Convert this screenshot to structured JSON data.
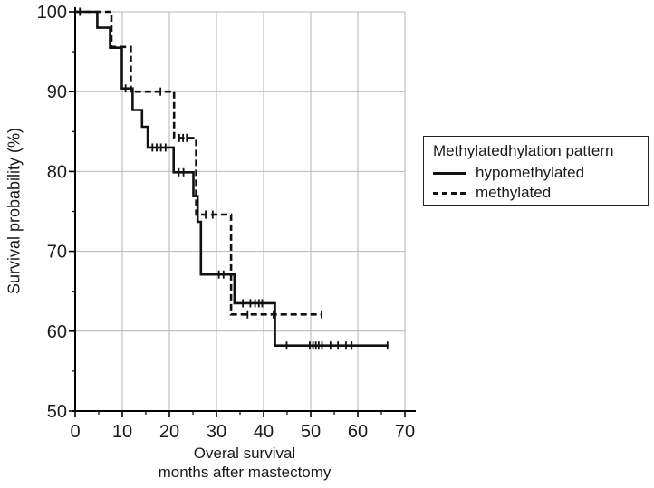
{
  "figure": {
    "background": "#ffffff",
    "line_color": "#111111",
    "grid_color": "#b4b4b4",
    "axis_color": "#000000"
  },
  "axes": {
    "x": {
      "title_line1": "Overal survival",
      "title_line2": "months after mastectomy",
      "min": 0,
      "max": 70,
      "major_tick_labels": [
        "0",
        "10",
        "20",
        "30",
        "40",
        "50",
        "60",
        "70"
      ],
      "major_ticks": [
        0,
        10,
        20,
        30,
        40,
        50,
        60,
        70
      ],
      "minor_ticks": [
        5,
        15,
        25,
        35,
        45,
        55,
        65
      ]
    },
    "y": {
      "title": "Survival probability (%)",
      "min": 50,
      "max": 100,
      "major_tick_labels": [
        "50",
        "60",
        "70",
        "80",
        "90",
        "100"
      ],
      "major_ticks": [
        50,
        60,
        70,
        80,
        90,
        100
      ],
      "minor_ticks": [
        55,
        65,
        75,
        85,
        95
      ]
    }
  },
  "legend": {
    "title": "Methylatedhylation pattern",
    "items": [
      {
        "label": "hypomethylated",
        "style": "solid"
      },
      {
        "label": "methylated",
        "style": "dashed"
      }
    ]
  },
  "chart_data": {
    "type": "line",
    "subtype": "kaplan-meier-step",
    "title": "",
    "xlabel": "Overal survival months after mastectomy",
    "ylabel": "Survival probability (%)",
    "xlim": [
      0,
      70
    ],
    "ylim": [
      50,
      100
    ],
    "grid": true,
    "legend_position": "right",
    "series": [
      {
        "name": "hypomethylated",
        "line": "solid",
        "color": "#111111",
        "segments": [
          [
            0,
            4.7,
            100
          ],
          [
            4.7,
            7.4,
            98.0
          ],
          [
            7.4,
            9.9,
            95.5
          ],
          [
            9.9,
            12.2,
            90.4
          ],
          [
            12.2,
            14.2,
            87.7
          ],
          [
            14.2,
            15.4,
            85.6
          ],
          [
            15.4,
            20.9,
            83.0
          ],
          [
            20.9,
            25.1,
            79.9
          ],
          [
            25.1,
            26.0,
            76.9
          ],
          [
            26.0,
            26.7,
            73.7
          ],
          [
            26.7,
            33.8,
            67.1
          ],
          [
            33.8,
            42.4,
            63.5
          ],
          [
            42.4,
            66.5,
            58.2
          ]
        ],
        "censored": [
          [
            1.0,
            100
          ],
          [
            10.7,
            90.4
          ],
          [
            16.4,
            83.0
          ],
          [
            17.3,
            83.0
          ],
          [
            18.2,
            83.0
          ],
          [
            19.2,
            83.0
          ],
          [
            22.0,
            79.9
          ],
          [
            23.0,
            79.9
          ],
          [
            30.5,
            67.1
          ],
          [
            31.5,
            67.1
          ],
          [
            35.6,
            63.5
          ],
          [
            37.2,
            63.5
          ],
          [
            38.2,
            63.5
          ],
          [
            39.0,
            63.5
          ],
          [
            39.7,
            63.5
          ],
          [
            44.9,
            58.2
          ],
          [
            49.8,
            58.2
          ],
          [
            50.5,
            58.2
          ],
          [
            51.1,
            58.2
          ],
          [
            51.7,
            58.2
          ],
          [
            52.4,
            58.2
          ],
          [
            54.2,
            58.2
          ],
          [
            55.8,
            58.2
          ],
          [
            57.5,
            58.2
          ],
          [
            58.7,
            58.2
          ],
          [
            66.3,
            58.2
          ]
        ]
      },
      {
        "name": "methylated",
        "line": "dashed",
        "color": "#111111",
        "segments": [
          [
            0,
            7.7,
            100
          ],
          [
            7.7,
            11.8,
            95.6
          ],
          [
            11.8,
            21.0,
            90.0
          ],
          [
            21.0,
            25.7,
            84.2
          ],
          [
            25.7,
            33.1,
            74.6
          ],
          [
            33.1,
            52.3,
            62.1
          ]
        ],
        "censored": [
          [
            18.1,
            90.0
          ],
          [
            22.1,
            84.2
          ],
          [
            22.9,
            84.2
          ],
          [
            23.7,
            84.2
          ],
          [
            27.7,
            74.6
          ],
          [
            29.2,
            74.6
          ],
          [
            36.6,
            62.1
          ],
          [
            42.1,
            62.1
          ],
          [
            52.3,
            62.1
          ]
        ]
      }
    ]
  }
}
